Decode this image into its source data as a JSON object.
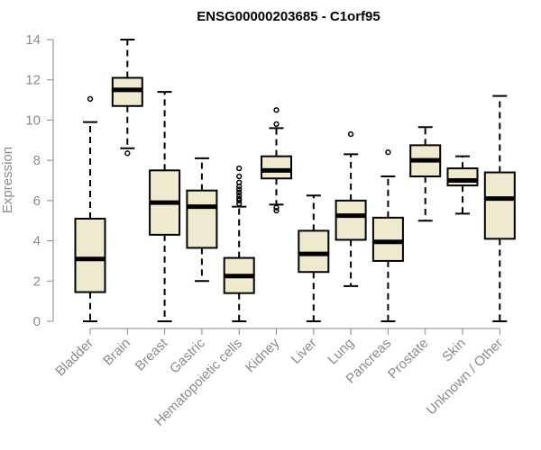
{
  "chart_data": {
    "type": "boxplot",
    "title": "ENSG00000203685 - C1orf95",
    "xlabel": "",
    "ylabel": "Expression",
    "ylim": [
      0,
      14
    ],
    "yticks": [
      0,
      2,
      4,
      6,
      8,
      10,
      12,
      14
    ],
    "grid": false,
    "colors": {
      "box_fill": "#efe9d0",
      "box_stroke": "#000000",
      "axis": "#8a8a8a"
    },
    "categories": [
      "Bladder",
      "Brain",
      "Breast",
      "Gastric",
      "Hematopoietic cells",
      "Kidney",
      "Liver",
      "Lung",
      "Pancreas",
      "Prostate",
      "Skin",
      "Unknown / Other"
    ],
    "boxes": [
      {
        "min": 0,
        "q1": 1.45,
        "median": 3.1,
        "q3": 5.1,
        "max": 9.9,
        "outliers": [
          11.05
        ]
      },
      {
        "min": 8.6,
        "q1": 10.7,
        "median": 11.5,
        "q3": 12.1,
        "max": 14.0,
        "outliers": [
          8.35
        ]
      },
      {
        "min": 0,
        "q1": 4.3,
        "median": 5.9,
        "q3": 7.5,
        "max": 11.4,
        "outliers": []
      },
      {
        "min": 2.0,
        "q1": 3.65,
        "median": 5.7,
        "q3": 6.5,
        "max": 8.1,
        "outliers": []
      },
      {
        "min": 0,
        "q1": 1.4,
        "median": 2.25,
        "q3": 3.15,
        "max": 5.7,
        "outliers": [
          5.85,
          6.0,
          6.1,
          6.25,
          6.4,
          6.55,
          6.7,
          6.9,
          7.2,
          7.6
        ]
      },
      {
        "min": 5.8,
        "q1": 7.1,
        "median": 7.5,
        "q3": 8.2,
        "max": 9.6,
        "outliers": [
          5.5,
          5.65,
          9.8,
          10.5
        ]
      },
      {
        "min": 0,
        "q1": 2.45,
        "median": 3.35,
        "q3": 4.5,
        "max": 6.25,
        "outliers": []
      },
      {
        "min": 1.75,
        "q1": 4.05,
        "median": 5.25,
        "q3": 6.0,
        "max": 8.3,
        "outliers": [
          9.3
        ]
      },
      {
        "min": 0,
        "q1": 3.0,
        "median": 3.95,
        "q3": 5.15,
        "max": 7.2,
        "outliers": [
          8.4
        ]
      },
      {
        "min": 5.0,
        "q1": 7.2,
        "median": 8.0,
        "q3": 8.75,
        "max": 9.65,
        "outliers": []
      },
      {
        "min": 5.35,
        "q1": 6.75,
        "median": 7.0,
        "q3": 7.6,
        "max": 8.2,
        "outliers": []
      },
      {
        "min": 0,
        "q1": 4.1,
        "median": 6.1,
        "q3": 7.4,
        "max": 11.2,
        "outliers": []
      }
    ]
  }
}
